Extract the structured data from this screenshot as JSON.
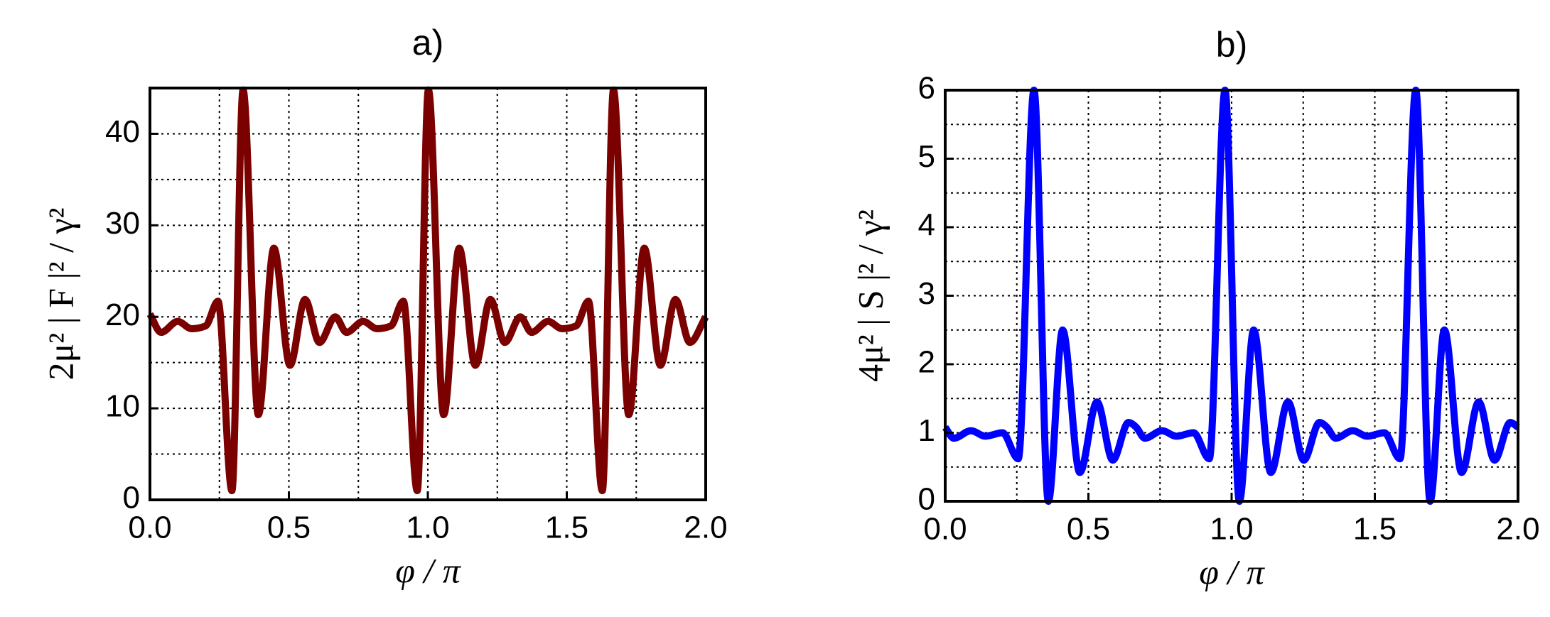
{
  "chart_data": [
    {
      "type": "line",
      "title": "a)",
      "xlabel": "φ / π",
      "ylabel": "2μ² | F |² / γ²",
      "x": [
        0,
        0.04,
        0.1,
        0.15,
        0.2,
        0.245,
        0.295,
        0.335,
        0.39,
        0.446,
        0.504,
        0.558,
        0.61,
        0.667,
        0.707,
        0.767,
        0.817,
        0.867,
        0.912,
        0.962,
        1.002,
        1.057,
        1.113,
        1.171,
        1.225,
        1.277,
        1.333,
        1.373,
        1.433,
        1.483,
        1.533,
        1.578,
        1.628,
        1.668,
        1.723,
        1.779,
        1.837,
        1.891,
        1.943,
        2.0
      ],
      "series": [
        {
          "color": "#7b0000",
          "values": [
            20.3,
            18.3,
            19.5,
            18.7,
            19.0,
            21.7,
            1,
            44.8,
            9.3,
            27.5,
            14.7,
            21.9,
            17.2,
            20.0,
            18.3,
            19.5,
            18.7,
            19.0,
            21.7,
            1,
            44.8,
            9.3,
            27.5,
            14.7,
            21.9,
            17.2,
            20.0,
            18.3,
            19.5,
            18.7,
            19.0,
            21.7,
            1,
            44.8,
            9.3,
            27.5,
            14.7,
            21.9,
            17.2,
            20.0
          ]
        }
      ],
      "xlim": [
        0,
        2
      ],
      "xticks": [
        {
          "value": 0,
          "label": "0.0"
        },
        {
          "value": 0.5,
          "label": "0.5"
        },
        {
          "value": 1,
          "label": "1.0"
        },
        {
          "value": 1.5,
          "label": "1.5"
        },
        {
          "value": 2,
          "label": "2.0"
        }
      ],
      "xminorticks": [
        0.25,
        0.75,
        1.25,
        1.75
      ],
      "ylim": [
        0,
        45
      ],
      "yticks": [
        0,
        10,
        20,
        30,
        40
      ],
      "yminorticks": [
        5,
        15,
        25,
        35,
        45
      ],
      "grid": true
    },
    {
      "type": "line",
      "title": "b)",
      "xlabel": "φ / π",
      "ylabel": "4μ² | S |² / γ²",
      "x": [
        0,
        0.03,
        0.09,
        0.14,
        0.2,
        0.255,
        0.31,
        0.36,
        0.41,
        0.47,
        0.53,
        0.585,
        0.64,
        0.667,
        0.697,
        0.757,
        0.807,
        0.867,
        0.922,
        0.977,
        1.027,
        1.077,
        1.137,
        1.197,
        1.252,
        1.307,
        1.333,
        1.363,
        1.423,
        1.473,
        1.533,
        1.588,
        1.643,
        1.693,
        1.743,
        1.803,
        1.863,
        1.918,
        1.973,
        2.0
      ],
      "series": [
        {
          "color": "#0000ff",
          "values": [
            1.08,
            0.92,
            1.03,
            0.95,
            1.0,
            0.62,
            6.0,
            0,
            2.5,
            0.42,
            1.45,
            0.6,
            1.15,
            1.08,
            0.92,
            1.03,
            0.95,
            1.0,
            0.62,
            6.0,
            0,
            2.5,
            0.42,
            1.45,
            0.6,
            1.15,
            1.08,
            0.92,
            1.03,
            0.95,
            1.0,
            0.62,
            6.0,
            0,
            2.5,
            0.42,
            1.45,
            0.6,
            1.15,
            1.08
          ]
        }
      ],
      "xlim": [
        0,
        2
      ],
      "xticks": [
        {
          "value": 0,
          "label": "0.0"
        },
        {
          "value": 0.5,
          "label": "0.5"
        },
        {
          "value": 1,
          "label": "1.0"
        },
        {
          "value": 1.5,
          "label": "1.5"
        },
        {
          "value": 2,
          "label": "2.0"
        }
      ],
      "xminorticks": [
        0.25,
        0.75,
        1.25,
        1.75
      ],
      "ylim": [
        0,
        6
      ],
      "yticks": [
        0,
        1,
        2,
        3,
        4,
        5,
        6
      ],
      "yminorticks": [
        0.5,
        1.5,
        2.5,
        3.5,
        4.5,
        5.5
      ],
      "grid": true
    }
  ]
}
